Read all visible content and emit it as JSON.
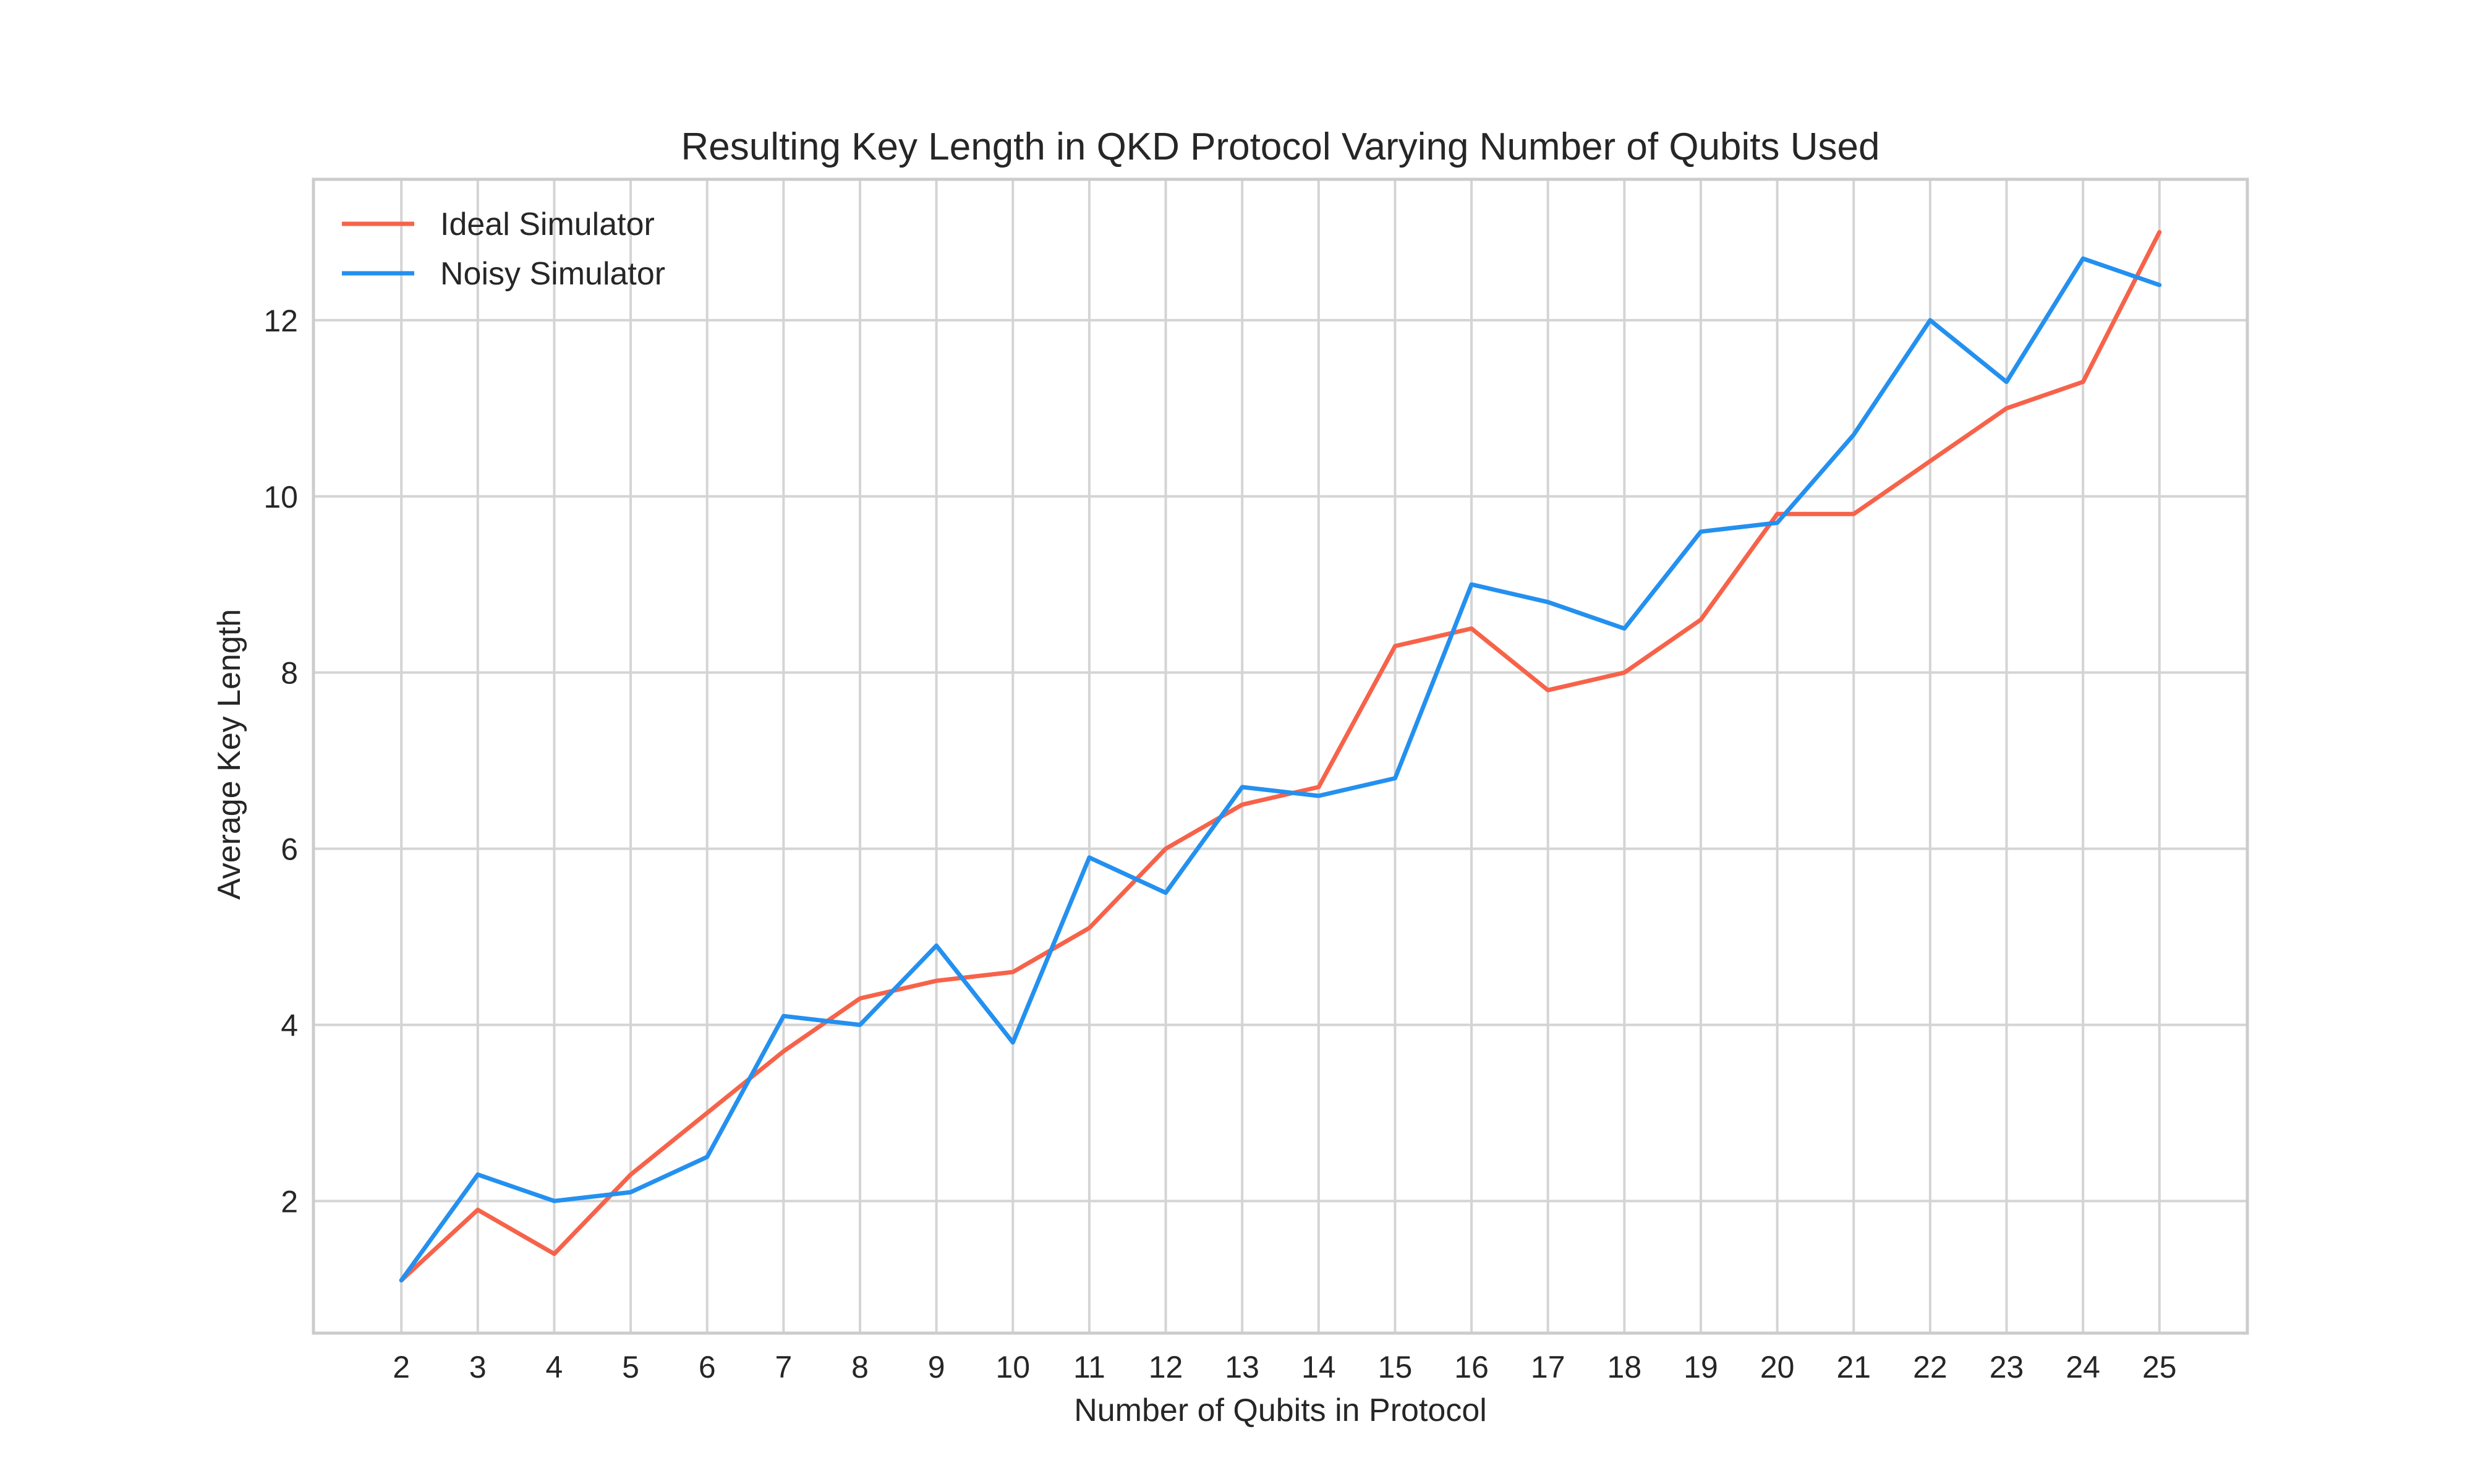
{
  "chart_data": {
    "type": "line",
    "title": "Resulting Key Length in QKD Protocol Varying Number of Qubits Used",
    "xlabel": "Number of Qubits in Protocol",
    "ylabel": "Average Key Length",
    "x": [
      2,
      3,
      4,
      5,
      6,
      7,
      8,
      9,
      10,
      11,
      12,
      13,
      14,
      15,
      16,
      17,
      18,
      19,
      20,
      21,
      22,
      23,
      24,
      25
    ],
    "xlim": [
      0.85,
      26.15
    ],
    "ylim": [
      0.5,
      13.6
    ],
    "yticks": [
      2,
      4,
      6,
      8,
      10,
      12
    ],
    "grid": true,
    "legend_position": "top-left",
    "series": [
      {
        "name": "Ideal Simulator",
        "color": "#f6634a",
        "values": [
          1.1,
          1.9,
          1.4,
          2.3,
          3.0,
          3.7,
          4.3,
          4.5,
          4.6,
          5.1,
          6.0,
          6.5,
          6.7,
          8.3,
          8.5,
          7.8,
          8.0,
          8.6,
          9.8,
          9.8,
          10.4,
          11.0,
          11.3,
          13.0
        ]
      },
      {
        "name": "Noisy Simulator",
        "color": "#2490ef",
        "values": [
          1.1,
          2.3,
          2.0,
          2.1,
          2.5,
          4.1,
          4.0,
          4.9,
          3.8,
          5.9,
          5.5,
          6.7,
          6.6,
          6.8,
          9.0,
          8.8,
          8.5,
          9.6,
          9.7,
          10.7,
          12.0,
          11.3,
          12.7,
          12.4
        ]
      }
    ]
  }
}
